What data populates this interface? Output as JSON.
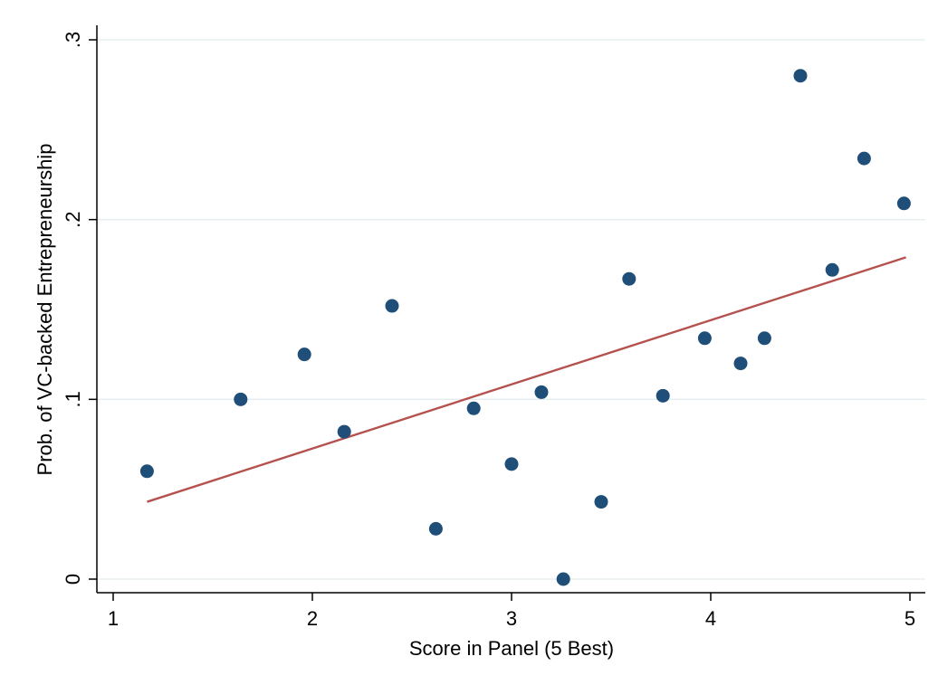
{
  "chart_data": {
    "type": "scatter",
    "xlabel": "Score in Panel (5 Best)",
    "ylabel": "Prob. of VC-backed Entrepreneurship",
    "xlim": [
      1,
      5
    ],
    "ylim": [
      0,
      0.3
    ],
    "xticks": [
      {
        "value": 1,
        "label": "1"
      },
      {
        "value": 2,
        "label": "2"
      },
      {
        "value": 3,
        "label": "3"
      },
      {
        "value": 4,
        "label": "4"
      },
      {
        "value": 5,
        "label": "5"
      }
    ],
    "yticks": [
      {
        "value": 0,
        "label": "0"
      },
      {
        "value": 0.1,
        "label": ".1"
      },
      {
        "value": 0.2,
        "label": ".2"
      },
      {
        "value": 0.3,
        "label": ".3"
      }
    ],
    "grid": "horizontal",
    "series": [
      {
        "type": "scatter",
        "color": "#1f4e79",
        "points": [
          {
            "x": 1.17,
            "y": 0.06
          },
          {
            "x": 1.64,
            "y": 0.1
          },
          {
            "x": 1.96,
            "y": 0.125
          },
          {
            "x": 2.16,
            "y": 0.082
          },
          {
            "x": 2.4,
            "y": 0.152
          },
          {
            "x": 2.62,
            "y": 0.028
          },
          {
            "x": 2.81,
            "y": 0.095
          },
          {
            "x": 3.0,
            "y": 0.064
          },
          {
            "x": 3.15,
            "y": 0.104
          },
          {
            "x": 3.26,
            "y": 0.0
          },
          {
            "x": 3.45,
            "y": 0.043
          },
          {
            "x": 3.59,
            "y": 0.167
          },
          {
            "x": 3.76,
            "y": 0.102
          },
          {
            "x": 3.97,
            "y": 0.134
          },
          {
            "x": 4.15,
            "y": 0.12
          },
          {
            "x": 4.27,
            "y": 0.134
          },
          {
            "x": 4.45,
            "y": 0.28
          },
          {
            "x": 4.61,
            "y": 0.172
          },
          {
            "x": 4.77,
            "y": 0.234
          },
          {
            "x": 4.97,
            "y": 0.209
          }
        ]
      },
      {
        "type": "line",
        "color": "#b5524f",
        "points": [
          {
            "x": 1.17,
            "y": 0.043
          },
          {
            "x": 4.98,
            "y": 0.179
          }
        ]
      }
    ]
  }
}
